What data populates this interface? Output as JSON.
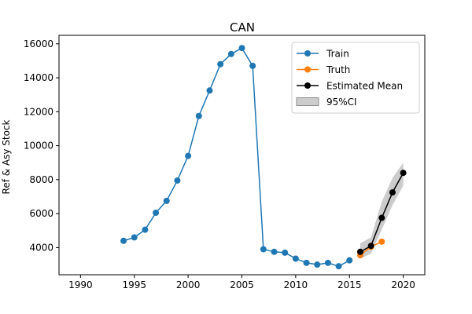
{
  "chart_data": {
    "type": "line",
    "title": "CAN",
    "xlabel": "",
    "ylabel": "Ref & Asy Stock",
    "xlim": [
      1988,
      2022
    ],
    "ylim": [
      2400,
      16500
    ],
    "xticks": [
      1990,
      1995,
      2000,
      2005,
      2010,
      2015,
      2020
    ],
    "yticks": [
      4000,
      6000,
      8000,
      10000,
      12000,
      14000,
      16000
    ],
    "grid": false,
    "legend_position": "top-right",
    "series": [
      {
        "name": "Train",
        "color": "#1f77b4",
        "marker": "circle",
        "x": [
          1994,
          1995,
          1996,
          1997,
          1998,
          1999,
          2000,
          2001,
          2002,
          2003,
          2004,
          2005,
          2006,
          2007,
          2008,
          2009,
          2010,
          2011,
          2012,
          2013,
          2014,
          2015
        ],
        "y": [
          4400,
          4600,
          5050,
          6050,
          6750,
          7950,
          9400,
          11750,
          13250,
          14800,
          15400,
          15750,
          14700,
          3900,
          3750,
          3700,
          3350,
          3100,
          3000,
          3100,
          2900,
          3250
        ]
      },
      {
        "name": "Truth",
        "color": "#ff7f0e",
        "marker": "circle",
        "x": [
          2016,
          2017,
          2018
        ],
        "y": [
          3550,
          4050,
          4350
        ]
      },
      {
        "name": "Estimated Mean",
        "color": "#000000",
        "marker": "circle",
        "x": [
          2016,
          2017,
          2018,
          2019,
          2020
        ],
        "y": [
          3750,
          4100,
          5750,
          7250,
          8400
        ]
      }
    ],
    "ci_band": {
      "name": "95%CI",
      "color": "#999999",
      "x": [
        2016,
        2017,
        2018,
        2019,
        2020
      ],
      "lower": [
        3350,
        3650,
        5050,
        6500,
        7650
      ],
      "upper": [
        4250,
        4600,
        6700,
        8100,
        9000
      ]
    }
  }
}
